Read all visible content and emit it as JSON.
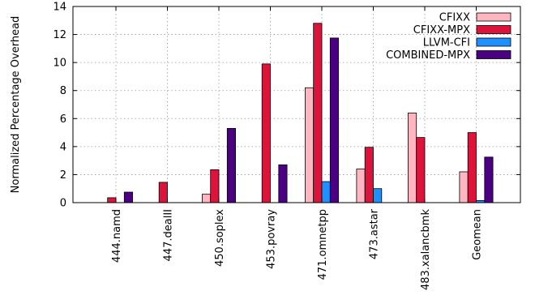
{
  "chart_data": {
    "type": "bar",
    "title": "",
    "xlabel": "",
    "ylabel": "Normalized Percentage Overhead",
    "ylim": [
      0,
      14
    ],
    "yticks": [
      0,
      2,
      4,
      6,
      8,
      10,
      12,
      14
    ],
    "grid": true,
    "legend_position": "top-right",
    "categories": [
      "444.namd",
      "447.dealII",
      "450.soplex",
      "453.povray",
      "471.omnetpp",
      "473.astar",
      "483.xalancbmk",
      "Geomean"
    ],
    "series": [
      {
        "name": "CFIXX",
        "color": "#ffb6c1",
        "values": [
          0,
          0,
          0.6,
          0,
          8.2,
          2.4,
          6.4,
          2.2
        ]
      },
      {
        "name": "CFIXX-MPX",
        "color": "#dc143c",
        "values": [
          0.35,
          1.45,
          2.35,
          9.9,
          12.8,
          3.95,
          4.65,
          5.0
        ]
      },
      {
        "name": "LLVM-CFI",
        "color": "#1e90ff",
        "values": [
          0,
          0,
          0,
          0,
          1.5,
          1.0,
          0,
          0.15
        ]
      },
      {
        "name": "COMBINED-MPX",
        "color": "#4b0082",
        "values": [
          0.75,
          0,
          5.3,
          2.7,
          11.75,
          0,
          0,
          3.25
        ]
      }
    ]
  }
}
